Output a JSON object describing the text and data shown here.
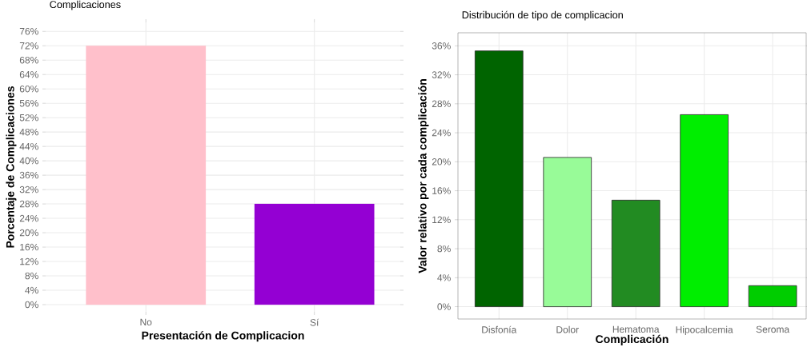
{
  "chart_data": [
    {
      "type": "bar",
      "title": "Complicaciones",
      "xlabel": "Presentación de Complicacion",
      "ylabel": "Porcentaje de Complicaciones",
      "categories": [
        "No",
        "Sí"
      ],
      "values": [
        72,
        28
      ],
      "colors": [
        "#ffc0cb",
        "#9400d3"
      ],
      "ylim": [
        -2,
        78.5
      ],
      "yticks": [
        {
          "value": 0,
          "label": "0%"
        },
        {
          "value": 4,
          "label": "4%"
        },
        {
          "value": 8,
          "label": "8%"
        },
        {
          "value": 12,
          "label": "12%"
        },
        {
          "value": 16,
          "label": "16%"
        },
        {
          "value": 20,
          "label": "20%"
        },
        {
          "value": 24,
          "label": "24%"
        },
        {
          "value": 28,
          "label": "28%"
        },
        {
          "value": 32,
          "label": "32%"
        },
        {
          "value": 36,
          "label": "36%"
        },
        {
          "value": 40,
          "label": "40%"
        },
        {
          "value": 44,
          "label": "44%"
        },
        {
          "value": 48,
          "label": "48%"
        },
        {
          "value": 52,
          "label": "52%"
        },
        {
          "value": 56,
          "label": "56%"
        },
        {
          "value": 60,
          "label": "60%"
        },
        {
          "value": 64,
          "label": "64%"
        },
        {
          "value": 68,
          "label": "68%"
        },
        {
          "value": 72,
          "label": "72%"
        },
        {
          "value": 76,
          "label": "76%"
        }
      ],
      "grid": true
    },
    {
      "type": "bar",
      "title": "Distribución de tipo de complicacion",
      "xlabel": "Complicación",
      "ylabel": "Valor relativo por cada complicación",
      "categories": [
        "Disfonía",
        "Dolor",
        "Hematoma",
        "Hipocalcemia",
        "Seroma"
      ],
      "values": [
        35.3,
        20.6,
        14.7,
        26.5,
        2.9
      ],
      "colors": [
        "#006400",
        "#98fb98",
        "#228b22",
        "#00ee00",
        "#00cd00"
      ],
      "ylim": [
        -1.7,
        37.8
      ],
      "yticks": [
        {
          "value": 0,
          "label": "0%"
        },
        {
          "value": 4,
          "label": "4%"
        },
        {
          "value": 8,
          "label": "8%"
        },
        {
          "value": 12,
          "label": "12%"
        },
        {
          "value": 16,
          "label": "16%"
        },
        {
          "value": 20,
          "label": "20%"
        },
        {
          "value": 24,
          "label": "24%"
        },
        {
          "value": 28,
          "label": "28%"
        },
        {
          "value": 32,
          "label": "32%"
        },
        {
          "value": 36,
          "label": "36%"
        }
      ],
      "grid": true
    }
  ]
}
